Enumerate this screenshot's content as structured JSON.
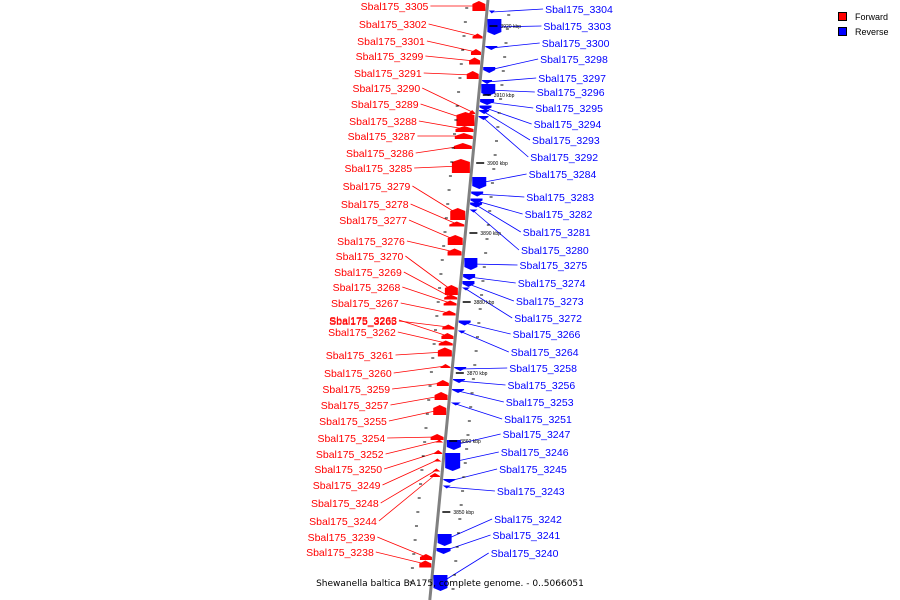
{
  "legend": {
    "forward_label": "Forward",
    "reverse_label": "Reverse",
    "forward_color": "#ff0000",
    "reverse_color": "#0000ff"
  },
  "caption": "Shewanella baltica BA175, complete genome. - 0..5066051",
  "tick_labels": [
    "3920 kbp",
    "3910 kbp",
    "3900 kbp",
    "3890 kbp",
    "3880 kbp",
    "3870 kbp",
    "3860 kbp",
    "3850 kbp"
  ],
  "forward_genes": [
    "Sbal175_3305",
    "Sbal175_3302",
    "Sbal175_3301",
    "Sbal175_3299",
    "Sbal175_3291",
    "Sbal175_3290",
    "Sbal175_3289",
    "Sbal175_3288",
    "Sbal175_3287",
    "Sbal175_3286",
    "Sbal175_3285",
    "Sbal175_3279",
    "Sbal175_3278",
    "Sbal175_3277",
    "Sbal175_3276",
    "Sbal175_3270",
    "Sbal175_3269",
    "Sbal175_3268",
    "Sbal175_3267",
    "Sbal175_3265",
    "Sbal175_3263",
    "Sbal175_3262",
    "Sbal175_3261",
    "Sbal175_3260",
    "Sbal175_3259",
    "Sbal175_3257",
    "Sbal175_3255",
    "Sbal175_3254",
    "Sbal175_3252",
    "Sbal175_3250",
    "Sbal175_3249",
    "Sbal175_3248",
    "Sbal175_3244",
    "Sbal175_3239",
    "Sbal175_3238"
  ],
  "reverse_genes": [
    "Sbal175_3304",
    "Sbal175_3303",
    "Sbal175_3300",
    "Sbal175_3298",
    "Sbal175_3297",
    "Sbal175_3296",
    "Sbal175_3295",
    "Sbal175_3294",
    "Sbal175_3293",
    "Sbal175_3292",
    "Sbal175_3284",
    "Sbal175_3283",
    "Sbal175_3282",
    "Sbal175_3281",
    "Sbal175_3280",
    "Sbal175_3275",
    "Sbal175_3274",
    "Sbal175_3273",
    "Sbal175_3272",
    "Sbal175_3266",
    "Sbal175_3264",
    "Sbal175_3258",
    "Sbal175_3256",
    "Sbal175_3253",
    "Sbal175_3251",
    "Sbal175_3247",
    "Sbal175_3246",
    "Sbal175_3245",
    "Sbal175_3243",
    "Sbal175_3242",
    "Sbal175_3241",
    "Sbal175_3240"
  ]
}
